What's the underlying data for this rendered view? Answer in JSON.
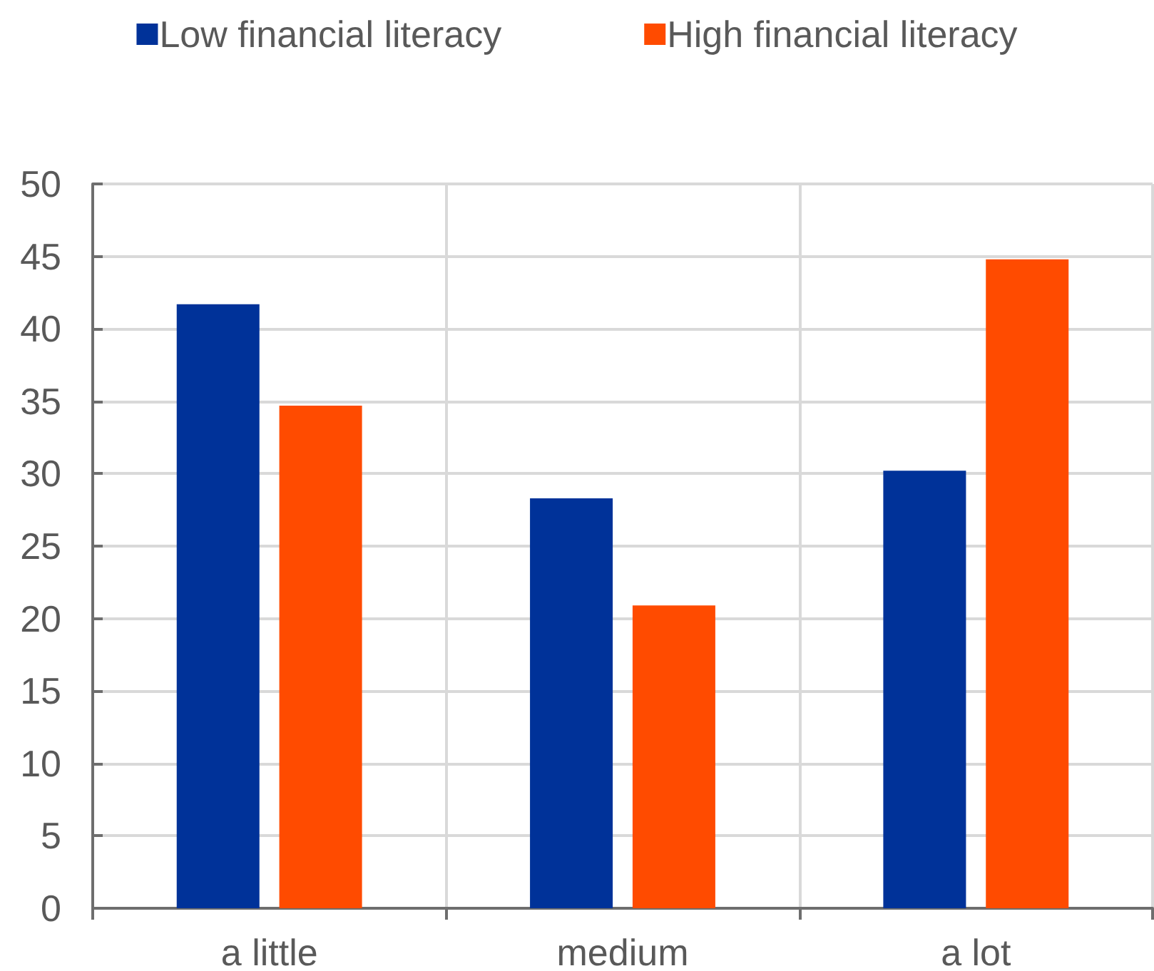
{
  "chart_data": {
    "type": "bar",
    "categories": [
      "a little",
      "medium",
      "a lot"
    ],
    "series": [
      {
        "name": "Low financial literacy",
        "color": "#003299",
        "values": [
          41.7,
          28.3,
          30.2
        ]
      },
      {
        "name": "High financial literacy",
        "color": "#ff4b00",
        "values": [
          34.7,
          20.9,
          44.8
        ]
      }
    ],
    "ylim": [
      0,
      50
    ],
    "yticks": [
      0,
      5,
      10,
      15,
      20,
      25,
      30,
      35,
      40,
      45,
      50
    ],
    "grid": true,
    "legend": "top"
  }
}
